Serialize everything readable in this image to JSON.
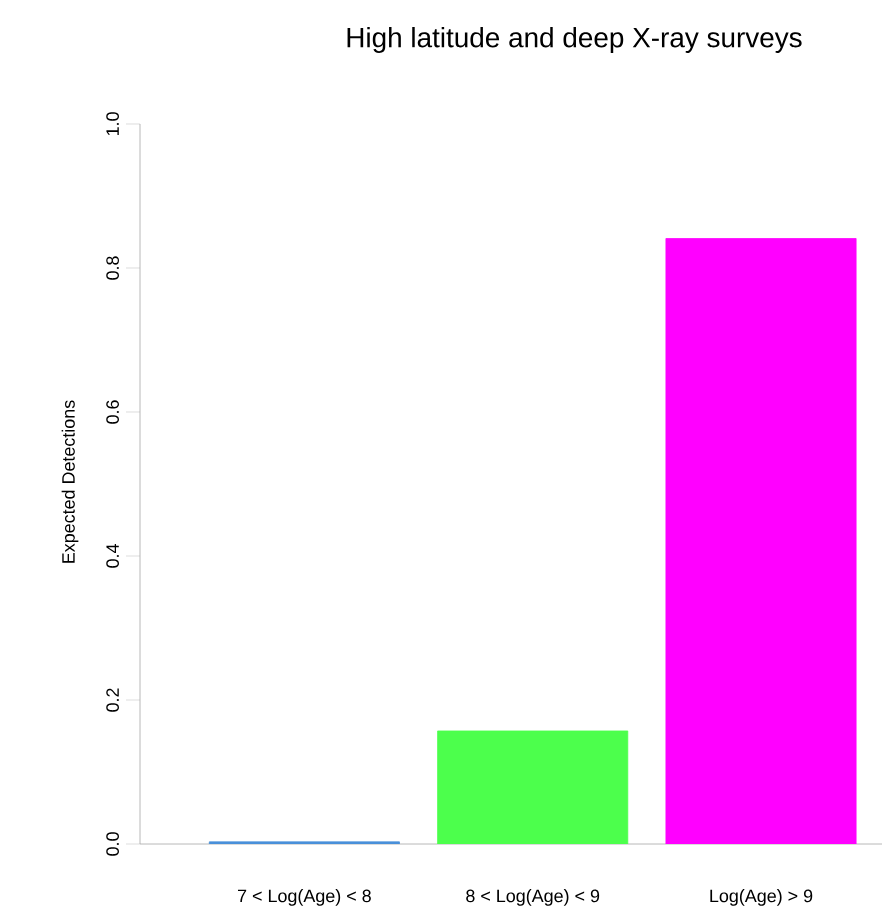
{
  "chart_data": {
    "type": "bar",
    "title": "High latitude and deep X-ray surveys",
    "ylabel": "Expected Detections",
    "categories": [
      "7 < Log(Age) < 8",
      "8 < Log(Age) < 9",
      "Log(Age) > 9"
    ],
    "values": [
      0.003,
      0.157,
      0.841
    ],
    "colors": [
      "#4a90d9",
      "#4cff4c",
      "#ff00ff"
    ],
    "ylim": [
      0,
      1
    ],
    "yticks": [
      {
        "value": 0,
        "label": "0.0"
      },
      {
        "value": 0.2,
        "label": "0.2"
      },
      {
        "value": 0.4,
        "label": "0.4"
      },
      {
        "value": 0.6,
        "label": "0.6"
      },
      {
        "value": 0.8,
        "label": "0.8"
      },
      {
        "value": 1,
        "label": "1.0"
      }
    ]
  }
}
